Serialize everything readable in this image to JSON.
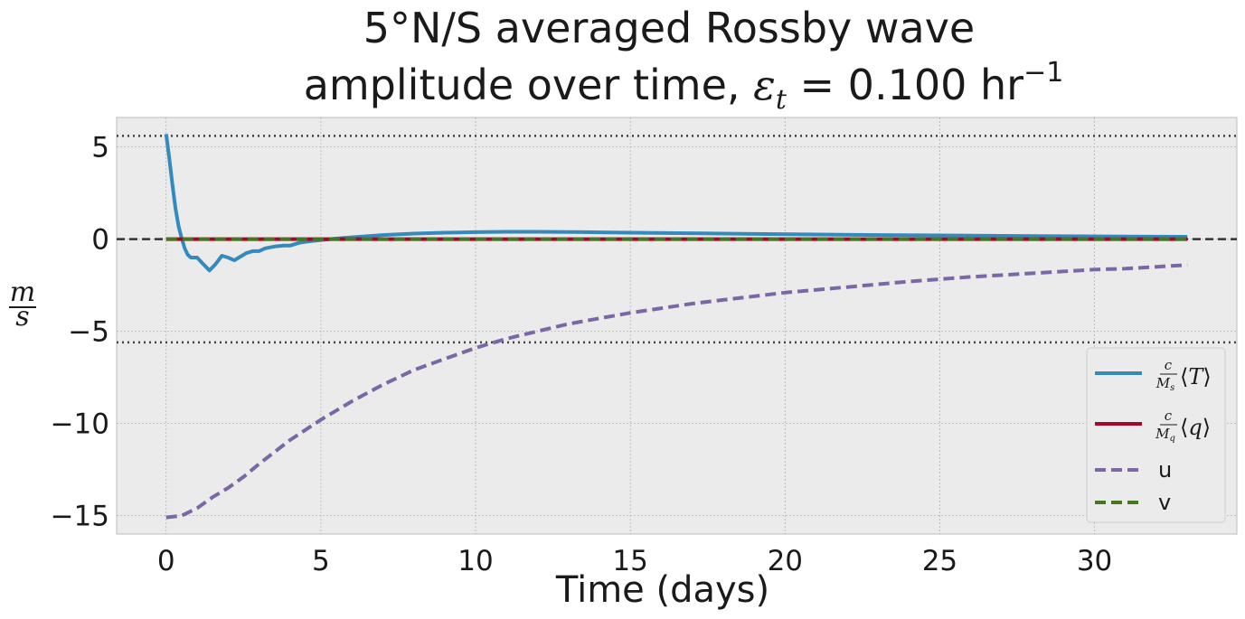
{
  "chart_data": {
    "type": "line",
    "title": {
      "line1": "5°N/S averaged Rossby wave",
      "line2_prefix": "amplitude over time, ",
      "epsilon_symbol": "ε",
      "epsilon_subscript": "t",
      "line2_value": " = 0.100 hr",
      "line2_exponent": "−1"
    },
    "xlabel": "Time (days)",
    "ylabel": {
      "numerator": "m",
      "denominator": "s"
    },
    "xlim": [
      -1.6,
      34.6
    ],
    "ylim": [
      -16,
      6.6
    ],
    "xticks": [
      0,
      5,
      10,
      15,
      20,
      25,
      30
    ],
    "xtick_labels": [
      "0",
      "5",
      "10",
      "15",
      "20",
      "25",
      "30"
    ],
    "yticks": [
      5,
      0,
      -5,
      -10,
      -15
    ],
    "ytick_labels": [
      "5",
      "0",
      "−5",
      "−10",
      "−15"
    ],
    "grid": true,
    "legend_position": "lower-right",
    "reference_lines": [
      {
        "y": 5.6,
        "style": "dotted",
        "color": "#444444"
      },
      {
        "y": 0,
        "style": "dashed",
        "color": "#333333"
      },
      {
        "y": -5.6,
        "style": "dotted",
        "color": "#444444"
      }
    ],
    "series": [
      {
        "name": "c/M_s ⟨T⟩",
        "color": "#348abd",
        "style": "solid",
        "x": [
          0,
          0.1,
          0.2,
          0.3,
          0.4,
          0.5,
          0.6,
          0.7,
          0.8,
          1.0,
          1.2,
          1.4,
          1.6,
          1.8,
          2.0,
          2.2,
          2.4,
          2.6,
          2.8,
          3.0,
          3.2,
          3.5,
          3.8,
          4.0,
          4.3,
          4.6,
          5.0,
          5.5,
          6,
          7,
          8,
          9,
          10,
          11,
          12,
          13,
          14,
          15,
          17,
          19,
          21,
          23,
          25,
          27,
          29,
          31,
          33
        ],
        "y": [
          5.7,
          4.4,
          3.0,
          1.7,
          0.7,
          0.05,
          -0.5,
          -0.85,
          -1.0,
          -1.0,
          -1.35,
          -1.7,
          -1.35,
          -0.9,
          -1.0,
          -1.15,
          -0.95,
          -0.75,
          -0.65,
          -0.65,
          -0.5,
          -0.4,
          -0.35,
          -0.35,
          -0.2,
          -0.12,
          -0.05,
          0.03,
          0.1,
          0.22,
          0.3,
          0.35,
          0.38,
          0.4,
          0.4,
          0.39,
          0.37,
          0.35,
          0.32,
          0.28,
          0.25,
          0.22,
          0.2,
          0.18,
          0.16,
          0.14,
          0.13
        ]
      },
      {
        "name": "c/M_q ⟨q⟩",
        "color": "#a60628",
        "style": "solid",
        "x": [
          0,
          33
        ],
        "y": [
          0,
          0
        ]
      },
      {
        "name": "u",
        "color": "#7a68a6",
        "style": "dashed",
        "x": [
          0,
          0.5,
          1,
          1.5,
          2,
          2.5,
          3,
          4,
          5,
          6,
          7,
          8,
          9,
          10,
          11,
          12,
          13,
          14,
          15,
          16,
          17,
          18,
          19,
          20,
          22,
          24,
          26,
          28,
          30,
          31,
          33
        ],
        "y": [
          -15.1,
          -15.0,
          -14.6,
          -14.0,
          -13.5,
          -12.9,
          -12.2,
          -10.9,
          -9.8,
          -8.8,
          -7.9,
          -7.1,
          -6.5,
          -5.9,
          -5.4,
          -5.0,
          -4.6,
          -4.3,
          -4.0,
          -3.75,
          -3.5,
          -3.3,
          -3.1,
          -2.9,
          -2.6,
          -2.3,
          -2.05,
          -1.85,
          -1.65,
          -1.6,
          -1.4
        ]
      },
      {
        "name": "v",
        "color": "#467821",
        "style": "dashed",
        "x": [
          0,
          33
        ],
        "y": [
          0,
          0
        ]
      }
    ],
    "legend_labels": {
      "T": {
        "num": "c",
        "den": "M",
        "den_sub": "s",
        "bracket_var": "T"
      },
      "q": {
        "num": "c",
        "den": "M",
        "den_sub": "q",
        "bracket_var": "q"
      },
      "u": "u",
      "v": "v"
    }
  }
}
